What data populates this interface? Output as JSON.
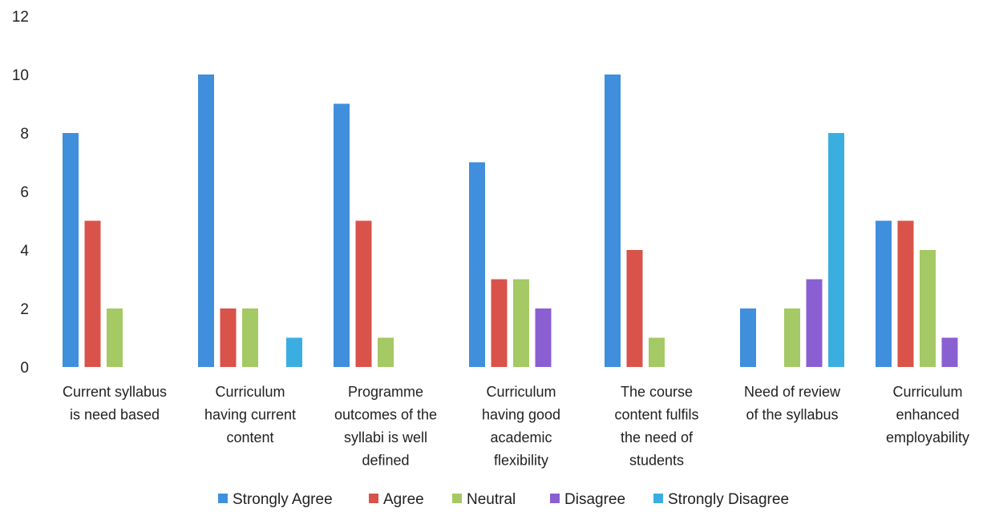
{
  "chart_data": {
    "type": "bar",
    "title": "",
    "xlabel": "",
    "ylabel": "",
    "ylim": [
      0,
      12
    ],
    "yticks": [
      0,
      2,
      4,
      6,
      8,
      10,
      12
    ],
    "grid": false,
    "legend_position": "bottom",
    "categories": [
      [
        "Current syllabus",
        "is need based"
      ],
      [
        "Curriculum",
        "having current",
        "content"
      ],
      [
        "Programme",
        "outcomes of the",
        "syllabi is well",
        "defined"
      ],
      [
        "Curriculum",
        "having good",
        "academic",
        "flexibility"
      ],
      [
        "The course",
        "content fulfils",
        "the need of",
        "students"
      ],
      [
        "Need of review",
        "of the syllabus"
      ],
      [
        "Curriculum",
        "enhanced",
        "employability"
      ]
    ],
    "series": [
      {
        "name": "Strongly Agree",
        "color": "#3f8fdc",
        "values": [
          8,
          10,
          9,
          7,
          10,
          2,
          5
        ]
      },
      {
        "name": "Agree",
        "color": "#d9534a",
        "values": [
          5,
          2,
          5,
          3,
          4,
          0,
          5
        ]
      },
      {
        "name": "Neutral",
        "color": "#a5c964",
        "values": [
          2,
          2,
          1,
          3,
          1,
          2,
          4
        ]
      },
      {
        "name": "Disagree",
        "color": "#8a5fd1",
        "values": [
          0,
          0,
          0,
          2,
          0,
          3,
          1
        ]
      },
      {
        "name": "Strongly Disagree",
        "color": "#3aaee0",
        "values": [
          0,
          1,
          0,
          0,
          0,
          8,
          0
        ]
      }
    ]
  }
}
